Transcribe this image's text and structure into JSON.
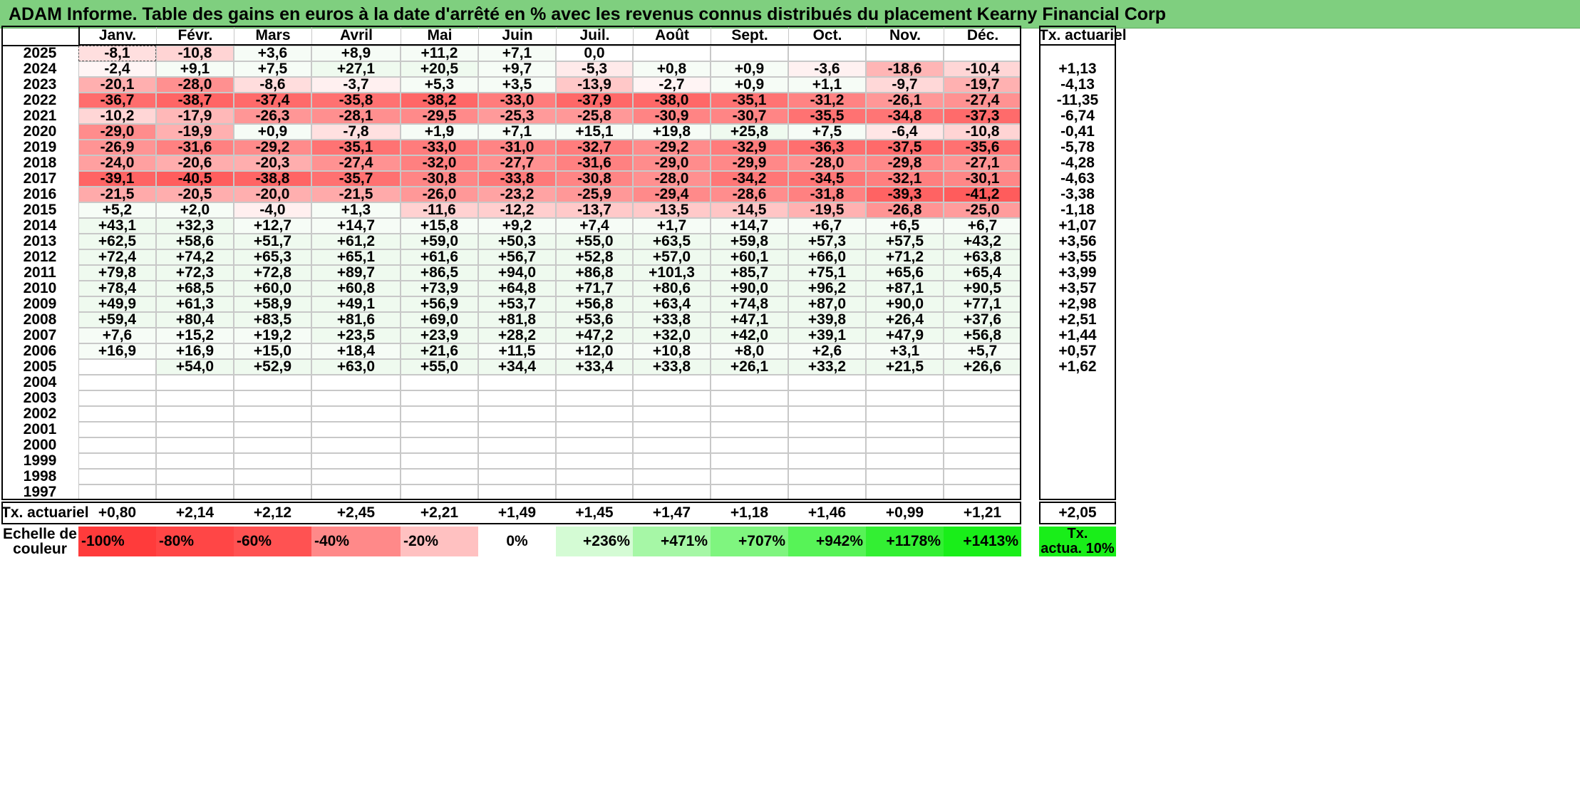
{
  "title": "ADAM Informe. Table des gains en euros à la date d'arrêté en % avec les revenus connus distribués du placement Kearny Financial Corp",
  "months": [
    "Janv.",
    "Févr.",
    "Mars",
    "Avril",
    "Mai",
    "Juin",
    "Juil.",
    "Août",
    "Sept.",
    "Oct.",
    "Nov.",
    "Déc."
  ],
  "annual_header": "Tx. actuariel",
  "rows": [
    {
      "year": "2025",
      "values": [
        "-8,1",
        "-10,8",
        "+3,6",
        "+8,9",
        "+11,2",
        "+7,1",
        "0,0",
        "",
        "",
        "",
        "",
        ""
      ],
      "annual": ""
    },
    {
      "year": "2024",
      "values": [
        "-2,4",
        "+9,1",
        "+7,5",
        "+27,1",
        "+20,5",
        "+9,7",
        "-5,3",
        "+0,8",
        "+0,9",
        "-3,6",
        "-18,6",
        "-10,4"
      ],
      "annual": "+1,13"
    },
    {
      "year": "2023",
      "values": [
        "-20,1",
        "-28,0",
        "-8,6",
        "-3,7",
        "+5,3",
        "+3,5",
        "-13,9",
        "-2,7",
        "+0,9",
        "+1,1",
        "-9,7",
        "-19,7"
      ],
      "annual": "-4,13"
    },
    {
      "year": "2022",
      "values": [
        "-36,7",
        "-38,7",
        "-37,4",
        "-35,8",
        "-38,2",
        "-33,0",
        "-37,9",
        "-38,0",
        "-35,1",
        "-31,2",
        "-26,1",
        "-27,4"
      ],
      "annual": "-11,35"
    },
    {
      "year": "2021",
      "values": [
        "-10,2",
        "-17,9",
        "-26,3",
        "-28,1",
        "-29,5",
        "-25,3",
        "-25,8",
        "-30,9",
        "-30,7",
        "-35,5",
        "-34,8",
        "-37,3"
      ],
      "annual": "-6,74"
    },
    {
      "year": "2020",
      "values": [
        "-29,0",
        "-19,9",
        "+0,9",
        "-7,8",
        "+1,9",
        "+7,1",
        "+15,1",
        "+19,8",
        "+25,8",
        "+7,5",
        "-6,4",
        "-10,8"
      ],
      "annual": "-0,41"
    },
    {
      "year": "2019",
      "values": [
        "-26,9",
        "-31,6",
        "-29,2",
        "-35,1",
        "-33,0",
        "-31,0",
        "-32,7",
        "-29,2",
        "-32,9",
        "-36,3",
        "-37,5",
        "-35,6"
      ],
      "annual": "-5,78"
    },
    {
      "year": "2018",
      "values": [
        "-24,0",
        "-20,6",
        "-20,3",
        "-27,4",
        "-32,0",
        "-27,7",
        "-31,6",
        "-29,0",
        "-29,9",
        "-28,0",
        "-29,8",
        "-27,1"
      ],
      "annual": "-4,28"
    },
    {
      "year": "2017",
      "values": [
        "-39,1",
        "-40,5",
        "-38,8",
        "-35,7",
        "-30,8",
        "-33,8",
        "-30,8",
        "-28,0",
        "-34,2",
        "-34,5",
        "-32,1",
        "-30,1"
      ],
      "annual": "-4,63"
    },
    {
      "year": "2016",
      "values": [
        "-21,5",
        "-20,5",
        "-20,0",
        "-21,5",
        "-26,0",
        "-23,2",
        "-25,9",
        "-29,4",
        "-28,6",
        "-31,8",
        "-39,3",
        "-41,2"
      ],
      "annual": "-3,38"
    },
    {
      "year": "2015",
      "values": [
        "+5,2",
        "+2,0",
        "-4,0",
        "+1,3",
        "-11,6",
        "-12,2",
        "-13,7",
        "-13,5",
        "-14,5",
        "-19,5",
        "-26,8",
        "-25,0"
      ],
      "annual": "-1,18"
    },
    {
      "year": "2014",
      "values": [
        "+43,1",
        "+32,3",
        "+12,7",
        "+14,7",
        "+15,8",
        "+9,2",
        "+7,4",
        "+1,7",
        "+14,7",
        "+6,7",
        "+6,5",
        "+6,7"
      ],
      "annual": "+1,07"
    },
    {
      "year": "2013",
      "values": [
        "+62,5",
        "+58,6",
        "+51,7",
        "+61,2",
        "+59,0",
        "+50,3",
        "+55,0",
        "+63,5",
        "+59,8",
        "+57,3",
        "+57,5",
        "+43,2"
      ],
      "annual": "+3,56"
    },
    {
      "year": "2012",
      "values": [
        "+72,4",
        "+74,2",
        "+65,3",
        "+65,1",
        "+61,6",
        "+56,7",
        "+52,8",
        "+57,0",
        "+60,1",
        "+66,0",
        "+71,2",
        "+63,8"
      ],
      "annual": "+3,55"
    },
    {
      "year": "2011",
      "values": [
        "+79,8",
        "+72,3",
        "+72,8",
        "+89,7",
        "+86,5",
        "+94,0",
        "+86,8",
        "+101,3",
        "+85,7",
        "+75,1",
        "+65,6",
        "+65,4"
      ],
      "annual": "+3,99"
    },
    {
      "year": "2010",
      "values": [
        "+78,4",
        "+68,5",
        "+60,0",
        "+60,8",
        "+73,9",
        "+64,8",
        "+71,7",
        "+80,6",
        "+90,0",
        "+96,2",
        "+87,1",
        "+90,5"
      ],
      "annual": "+3,57"
    },
    {
      "year": "2009",
      "values": [
        "+49,9",
        "+61,3",
        "+58,9",
        "+49,1",
        "+56,9",
        "+53,7",
        "+56,8",
        "+63,4",
        "+74,8",
        "+87,0",
        "+90,0",
        "+77,1"
      ],
      "annual": "+2,98"
    },
    {
      "year": "2008",
      "values": [
        "+59,4",
        "+80,4",
        "+83,5",
        "+81,6",
        "+69,0",
        "+81,8",
        "+53,6",
        "+33,8",
        "+47,1",
        "+39,8",
        "+26,4",
        "+37,6"
      ],
      "annual": "+2,51"
    },
    {
      "year": "2007",
      "values": [
        "+7,6",
        "+15,2",
        "+19,2",
        "+23,5",
        "+23,9",
        "+28,2",
        "+47,2",
        "+32,0",
        "+42,0",
        "+39,1",
        "+47,9",
        "+56,8"
      ],
      "annual": "+1,44"
    },
    {
      "year": "2006",
      "values": [
        "+16,9",
        "+16,9",
        "+15,0",
        "+18,4",
        "+21,6",
        "+11,5",
        "+12,0",
        "+10,8",
        "+8,0",
        "+2,6",
        "+3,1",
        "+5,7"
      ],
      "annual": "+0,57"
    },
    {
      "year": "2005",
      "values": [
        "",
        "+54,0",
        "+52,9",
        "+63,0",
        "+55,0",
        "+34,4",
        "+33,4",
        "+33,8",
        "+26,1",
        "+33,2",
        "+21,5",
        "+26,6"
      ],
      "annual": "+1,62"
    },
    {
      "year": "2004",
      "values": [
        "",
        "",
        "",
        "",
        "",
        "",
        "",
        "",
        "",
        "",
        "",
        ""
      ],
      "annual": ""
    },
    {
      "year": "2003",
      "values": [
        "",
        "",
        "",
        "",
        "",
        "",
        "",
        "",
        "",
        "",
        "",
        ""
      ],
      "annual": ""
    },
    {
      "year": "2002",
      "values": [
        "",
        "",
        "",
        "",
        "",
        "",
        "",
        "",
        "",
        "",
        "",
        ""
      ],
      "annual": ""
    },
    {
      "year": "2001",
      "values": [
        "",
        "",
        "",
        "",
        "",
        "",
        "",
        "",
        "",
        "",
        "",
        ""
      ],
      "annual": ""
    },
    {
      "year": "2000",
      "values": [
        "",
        "",
        "",
        "",
        "",
        "",
        "",
        "",
        "",
        "",
        "",
        ""
      ],
      "annual": ""
    },
    {
      "year": "1999",
      "values": [
        "",
        "",
        "",
        "",
        "",
        "",
        "",
        "",
        "",
        "",
        "",
        ""
      ],
      "annual": ""
    },
    {
      "year": "1998",
      "values": [
        "",
        "",
        "",
        "",
        "",
        "",
        "",
        "",
        "",
        "",
        "",
        ""
      ],
      "annual": ""
    },
    {
      "year": "1997",
      "values": [
        "",
        "",
        "",
        "",
        "",
        "",
        "",
        "",
        "",
        "",
        "",
        ""
      ],
      "annual": ""
    }
  ],
  "monthly_avg": {
    "label": "Tx. actuariel",
    "values": [
      "+0,80",
      "+2,14",
      "+2,12",
      "+2,45",
      "+2,21",
      "+1,49",
      "+1,45",
      "+1,47",
      "+1,18",
      "+1,46",
      "+0,99",
      "+1,21"
    ],
    "overall": "+2,05"
  },
  "color_scale": {
    "label_line1": "Echelle de",
    "label_line2": "couleur",
    "steps": [
      {
        "label": "-100%",
        "color": "#ff3b3b",
        "align": "left"
      },
      {
        "label": "-80%",
        "color": "#ff4646",
        "align": "left"
      },
      {
        "label": "-60%",
        "color": "#ff5252",
        "align": "left"
      },
      {
        "label": "-40%",
        "color": "#ff8989",
        "align": "left"
      },
      {
        "label": "-20%",
        "color": "#ffc1c1",
        "align": "left"
      },
      {
        "label": "0%",
        "color": "#ffffff",
        "align": "center"
      },
      {
        "label": "+236%",
        "color": "#d4fbd4",
        "align": "right"
      },
      {
        "label": "+471%",
        "color": "#a6f7a6",
        "align": "right"
      },
      {
        "label": "+707%",
        "color": "#7ff57f",
        "align": "right"
      },
      {
        "label": "+942%",
        "color": "#57f357",
        "align": "right"
      },
      {
        "label": "+1178%",
        "color": "#33ef33",
        "align": "right"
      },
      {
        "label": "+1413%",
        "color": "#19ee19",
        "align": "right"
      }
    ],
    "legend_line1": "Tx.",
    "legend_line2": "actua. 10%",
    "legend_color": "#19ee19"
  },
  "colors": {
    "title_bg": "#7fcf7f",
    "negative_max": "#ff5a5a",
    "positive_tint": "#eefaee"
  }
}
